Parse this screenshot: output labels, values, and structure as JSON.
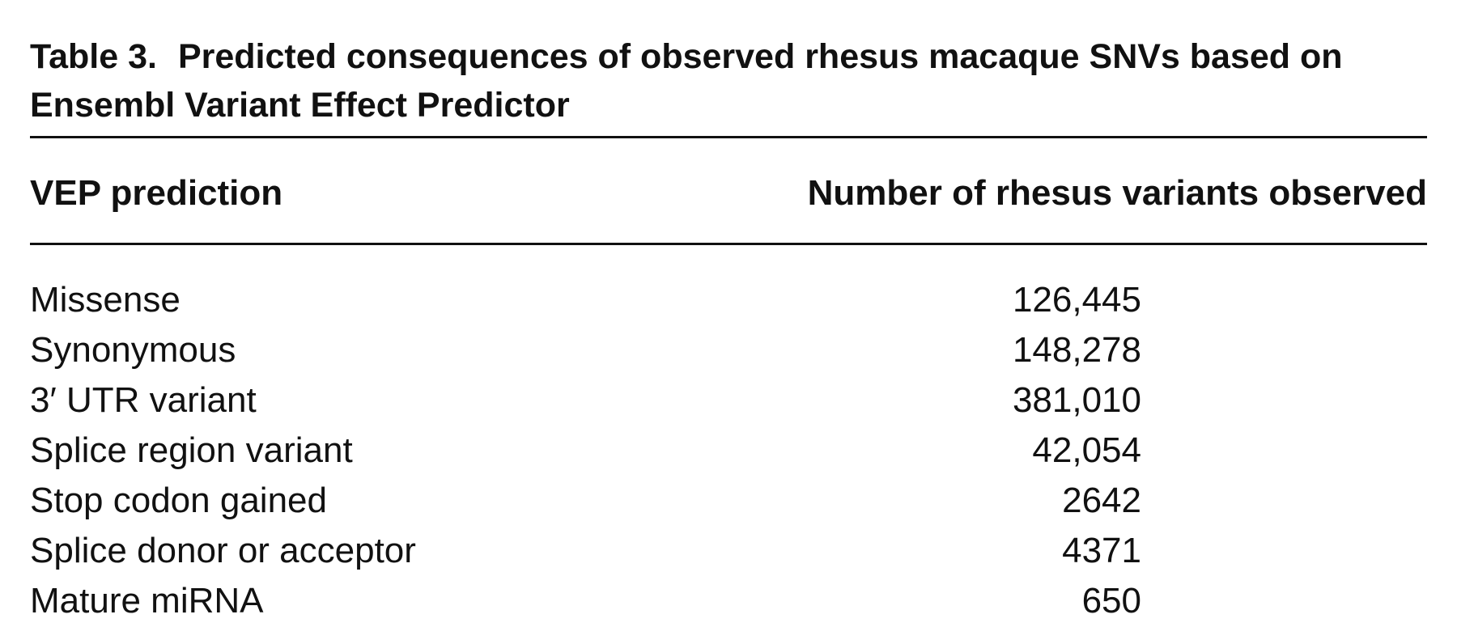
{
  "table": {
    "label": "Table 3.",
    "title": "Predicted consequences of observed rhesus macaque SNVs based on Ensembl Variant Effect Predictor",
    "columns": [
      "VEP prediction",
      "Number of rhesus variants observed"
    ],
    "rows": [
      [
        "Missense",
        "126,445"
      ],
      [
        "Synonymous",
        "148,278"
      ],
      [
        "3′ UTR variant",
        "381,010"
      ],
      [
        "Splice region variant",
        "42,054"
      ],
      [
        "Stop codon gained",
        "2642"
      ],
      [
        "Splice donor or acceptor",
        "4371"
      ],
      [
        "Mature miRNA",
        "650"
      ]
    ]
  }
}
